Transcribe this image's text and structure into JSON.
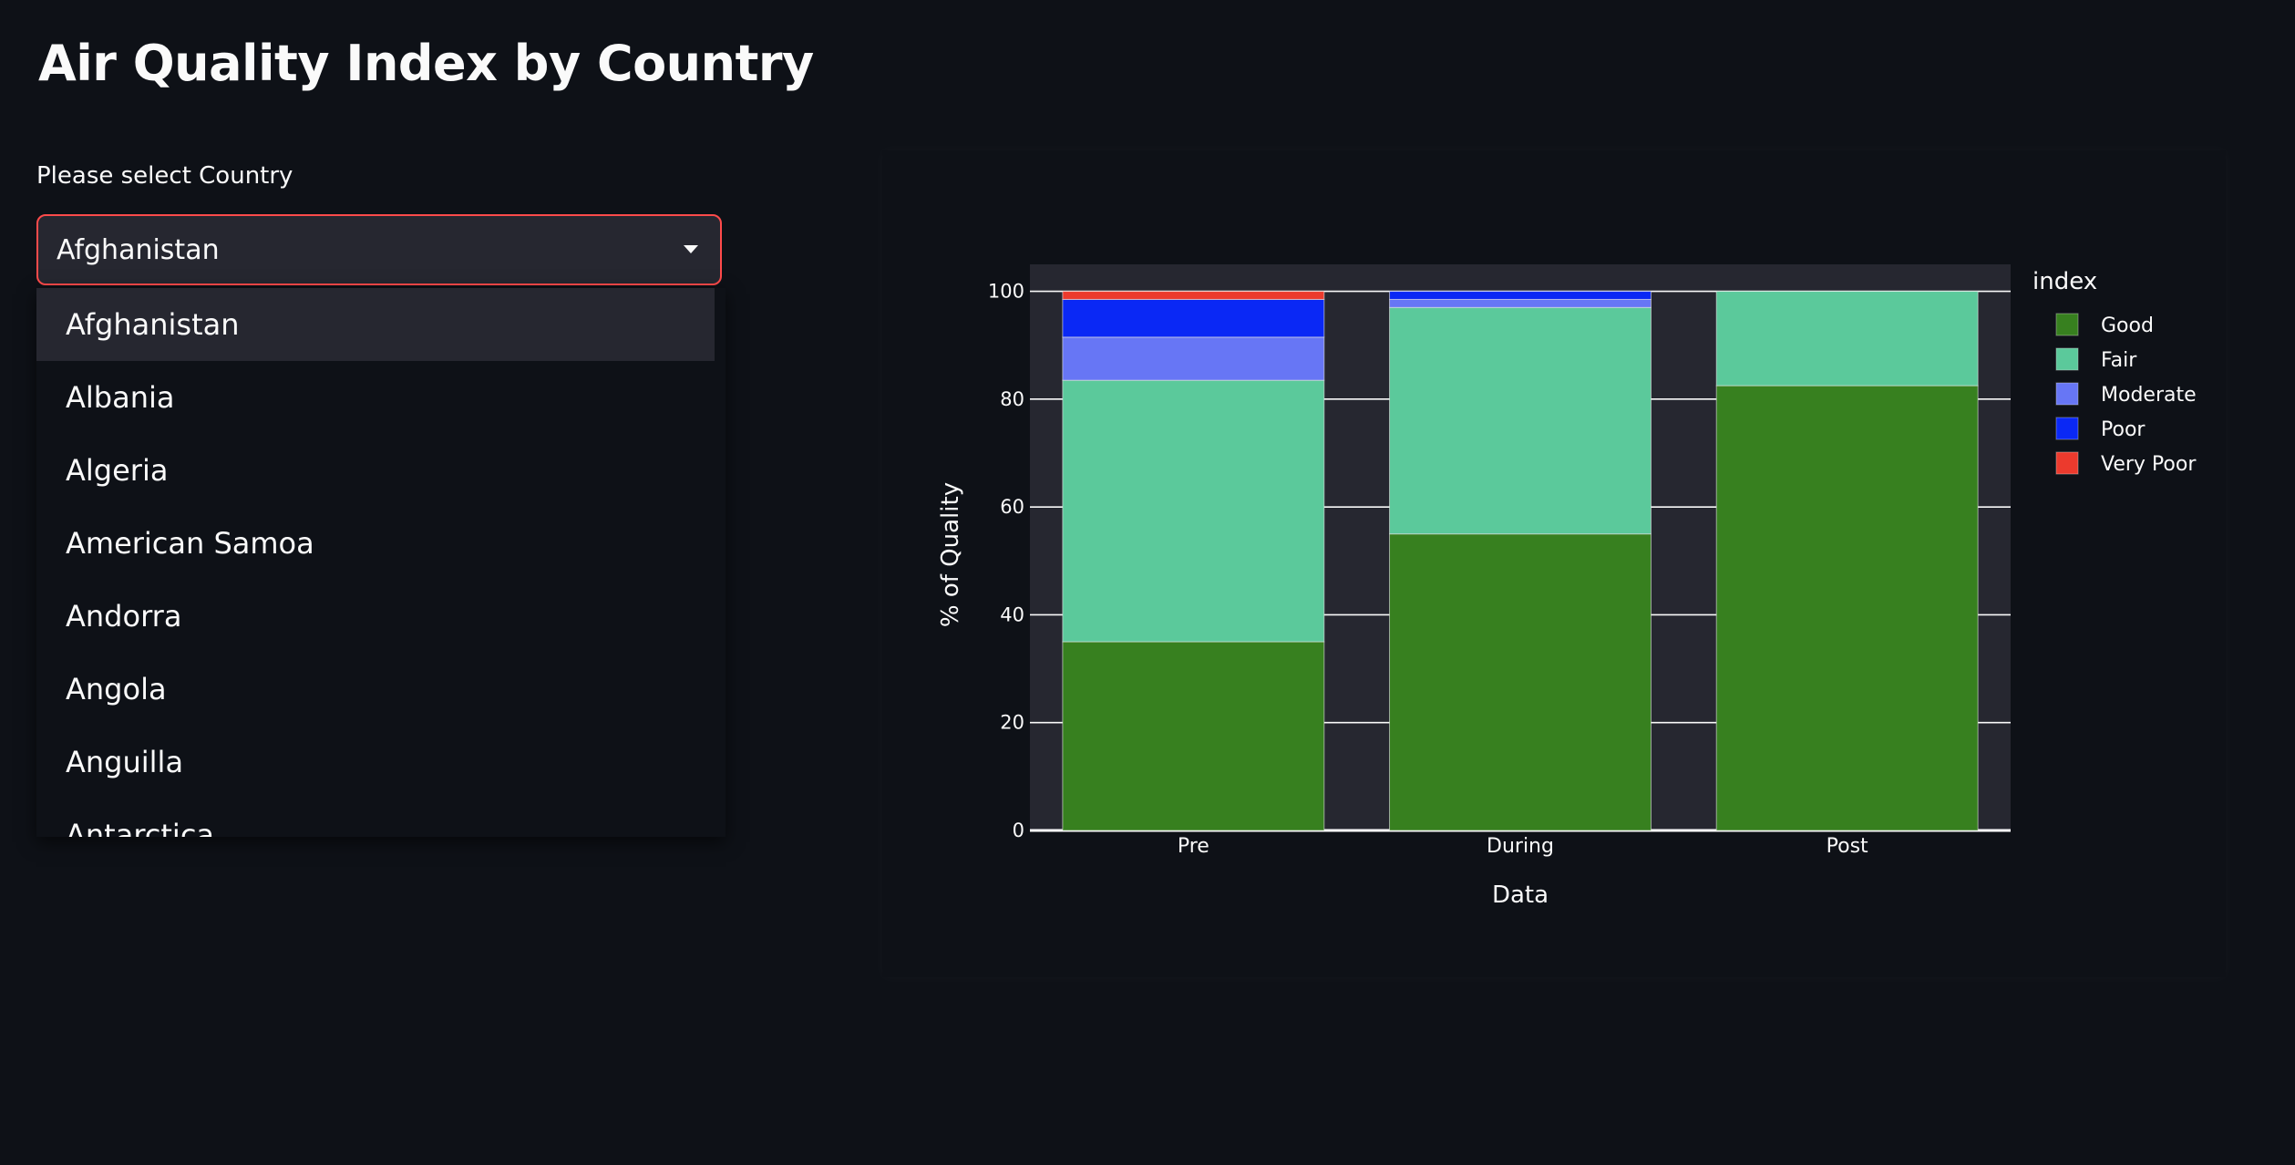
{
  "page": {
    "title": "Air Quality Index by Country"
  },
  "select": {
    "label": "Please select Country",
    "value": "Afghanistan",
    "accent": "#ff4b4b",
    "icon": "chevron-down-icon",
    "options": [
      "Afghanistan",
      "Albania",
      "Algeria",
      "American Samoa",
      "Andorra",
      "Angola",
      "Anguilla",
      "Antarctica"
    ]
  },
  "chart_data": {
    "type": "bar",
    "stacked": true,
    "title": "",
    "xlabel": "Data",
    "ylabel": "% of Quality",
    "ylim": [
      0,
      105
    ],
    "yticks": [
      0,
      20,
      40,
      60,
      80,
      100
    ],
    "categories": [
      "Pre",
      "During",
      "Post"
    ],
    "legend_title": "index",
    "legend_position": "top-right",
    "grid": true,
    "series": [
      {
        "name": "Good",
        "color": "#37801f",
        "values": [
          35,
          55,
          82.5
        ]
      },
      {
        "name": "Fair",
        "color": "#5bc99b",
        "values": [
          48.5,
          42,
          17.5
        ]
      },
      {
        "name": "Moderate",
        "color": "#6776f5",
        "values": [
          8,
          1.5,
          0
        ]
      },
      {
        "name": "Poor",
        "color": "#0a28f5",
        "values": [
          7,
          1.5,
          0
        ]
      },
      {
        "name": "Very Poor",
        "color": "#ec3a2d",
        "values": [
          1.5,
          0,
          0
        ]
      }
    ]
  }
}
